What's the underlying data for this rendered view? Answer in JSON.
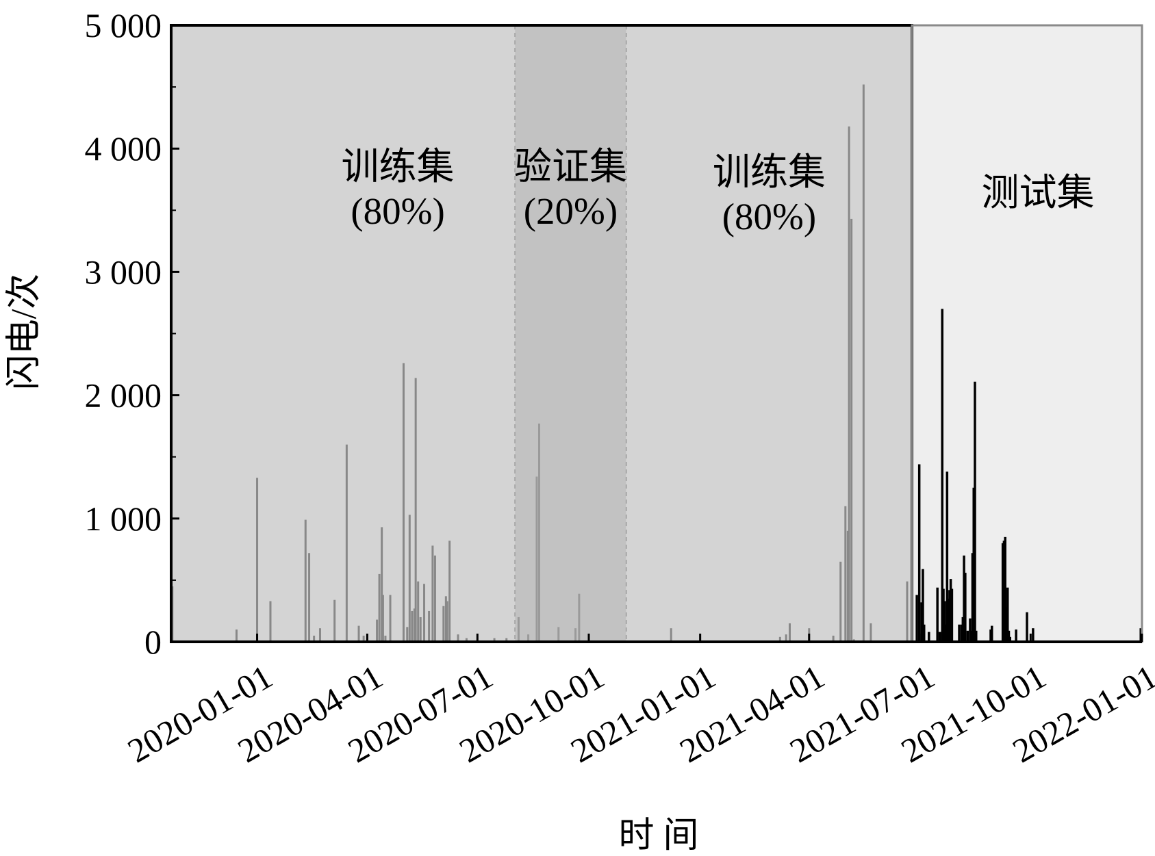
{
  "chart_data": {
    "type": "bar",
    "xlabel": "时 间",
    "ylabel": "闪电/次",
    "ylim": [
      0,
      5000
    ],
    "xlim": [
      "2019-10-22",
      "2022-01-01"
    ],
    "y_ticks": [
      "0",
      "1 000",
      "2 000",
      "3 000",
      "4 000",
      "5 000"
    ],
    "y_tick_values": [
      0,
      1000,
      2000,
      3000,
      4000,
      5000
    ],
    "x_ticks": [
      "2020-01-01",
      "2020-04-01",
      "2020-07-01",
      "2020-10-01",
      "2021-01-01",
      "2021-04-01",
      "2021-07-01",
      "2021-10-01",
      "2022-01-01"
    ],
    "grid": false,
    "regions": [
      {
        "name": "train1",
        "start": "2019-10-22",
        "end": "2020-08-01",
        "label_line1": "训练集",
        "label_line2": "(80%)",
        "color": "#d4d4d4"
      },
      {
        "name": "validation",
        "start": "2020-08-01",
        "end": "2020-11-01",
        "label_line1": "验证集",
        "label_line2": "(20%)",
        "color": "#c2c2c2"
      },
      {
        "name": "train2",
        "start": "2020-11-01",
        "end": "2021-06-25",
        "label_line1": "训练集",
        "label_line2": "(80%)",
        "color": "#d4d4d4"
      },
      {
        "name": "test",
        "start": "2021-06-25",
        "end": "2022-01-01",
        "label_line1": "测试集",
        "label_line2": "",
        "color": "#eeeeee"
      }
    ],
    "colors": {
      "train_bars": "#888888",
      "val_bars": "#9a9a9a",
      "test_bars": "#000000",
      "outline": "#000000"
    },
    "series": [
      {
        "name": "train",
        "x": [
          "2019-10-23",
          "2019-12-15",
          "2020-01-01",
          "2020-01-12",
          "2020-02-10",
          "2020-02-13",
          "2020-02-17",
          "2020-02-22",
          "2020-03-05",
          "2020-03-15",
          "2020-03-25",
          "2020-03-29",
          "2020-04-09",
          "2020-04-11",
          "2020-04-13",
          "2020-04-14",
          "2020-04-16",
          "2020-04-20",
          "2020-05-01",
          "2020-05-04",
          "2020-05-06",
          "2020-05-08",
          "2020-05-10",
          "2020-05-11",
          "2020-05-13",
          "2020-05-15",
          "2020-05-18",
          "2020-05-22",
          "2020-05-25",
          "2020-05-27",
          "2020-06-03",
          "2020-06-05",
          "2020-06-06",
          "2020-06-08",
          "2020-06-15",
          "2020-06-22",
          "2020-07-15",
          "2020-07-25",
          "2020-12-08",
          "2021-03-08",
          "2021-03-13",
          "2021-03-16",
          "2021-04-01",
          "2021-04-21",
          "2021-04-27",
          "2021-05-01",
          "2021-05-03",
          "2021-05-04",
          "2021-05-06",
          "2021-05-08",
          "2021-05-16",
          "2021-05-22",
          "2021-06-21"
        ],
        "values": [
          450,
          100,
          1330,
          330,
          990,
          720,
          50,
          110,
          340,
          1600,
          130,
          50,
          180,
          550,
          930,
          380,
          50,
          380,
          2260,
          120,
          1030,
          250,
          270,
          2140,
          490,
          200,
          470,
          250,
          780,
          700,
          290,
          370,
          330,
          820,
          60,
          30,
          30,
          30,
          110,
          40,
          60,
          150,
          110,
          50,
          650,
          1100,
          900,
          4180,
          3430,
          20,
          4520,
          150,
          490
        ]
      },
      {
        "name": "validation",
        "x": [
          "2020-08-04",
          "2020-08-12",
          "2020-08-19",
          "2020-08-21",
          "2020-09-06",
          "2020-09-20",
          "2020-09-23"
        ],
        "values": [
          200,
          60,
          1340,
          1770,
          120,
          110,
          390
        ]
      },
      {
        "name": "test",
        "x": [
          "2021-06-29",
          "2021-07-01",
          "2021-07-03",
          "2021-07-04",
          "2021-07-05",
          "2021-07-09",
          "2021-07-16",
          "2021-07-18",
          "2021-07-20",
          "2021-07-21",
          "2021-07-22",
          "2021-07-23",
          "2021-07-24",
          "2021-07-25",
          "2021-07-26",
          "2021-07-27",
          "2021-07-28",
          "2021-08-03",
          "2021-08-05",
          "2021-08-06",
          "2021-08-07",
          "2021-08-08",
          "2021-08-10",
          "2021-08-12",
          "2021-08-13",
          "2021-08-14",
          "2021-08-15",
          "2021-08-16",
          "2021-08-17",
          "2021-08-29",
          "2021-08-30",
          "2021-09-08",
          "2021-09-09",
          "2021-09-10",
          "2021-09-11",
          "2021-09-12",
          "2021-09-13",
          "2021-09-14",
          "2021-09-19",
          "2021-09-28",
          "2021-10-03",
          "2021-12-31"
        ],
        "values": [
          380,
          1440,
          320,
          590,
          140,
          80,
          440,
          80,
          2700,
          430,
          330,
          140,
          1380,
          350,
          420,
          510,
          430,
          140,
          140,
          200,
          700,
          560,
          90,
          190,
          90,
          720,
          1250,
          2110,
          90,
          100,
          130,
          800,
          820,
          850,
          280,
          440,
          90,
          40,
          100,
          240,
          110,
          110
        ]
      }
    ]
  }
}
